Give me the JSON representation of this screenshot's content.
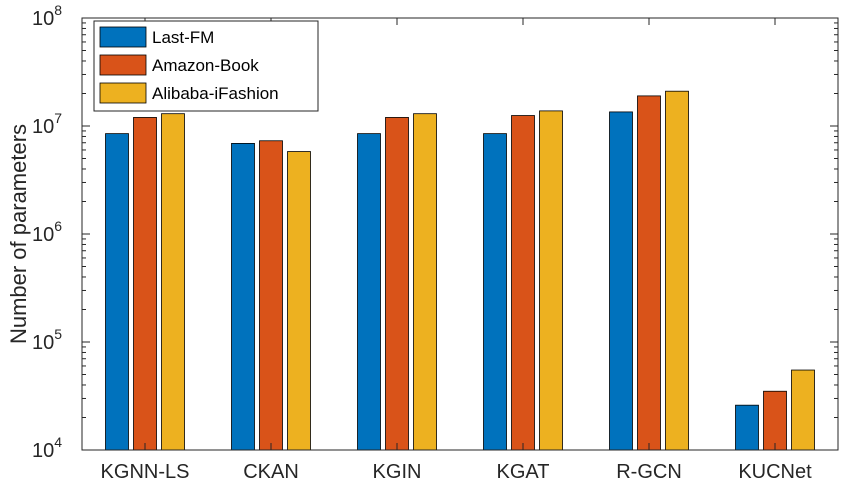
{
  "chart_data": {
    "type": "bar",
    "yscale": "log",
    "title": "",
    "xlabel": "",
    "ylabel": "Number of parameters",
    "ylim": [
      10000,
      100000000
    ],
    "yticks": [
      {
        "value": 10000,
        "base": "10",
        "exp": "4"
      },
      {
        "value": 100000,
        "base": "10",
        "exp": "5"
      },
      {
        "value": 1000000,
        "base": "10",
        "exp": "6"
      },
      {
        "value": 10000000,
        "base": "10",
        "exp": "7"
      },
      {
        "value": 100000000,
        "base": "10",
        "exp": "8"
      }
    ],
    "categories": [
      "KGNN-LS",
      "CKAN",
      "KGIN",
      "KGAT",
      "R-GCN",
      "KUCNet"
    ],
    "series": [
      {
        "name": "Last-FM",
        "color": "#0072BD",
        "values": [
          8500000,
          6900000,
          8500000,
          8500000,
          13500000,
          26000
        ]
      },
      {
        "name": "Amazon-Book",
        "color": "#D95319",
        "values": [
          12000000,
          7300000,
          12000000,
          12500000,
          19000000,
          35000
        ]
      },
      {
        "name": "Alibaba-iFashion",
        "color": "#EDB120",
        "values": [
          13000000,
          5800000,
          13000000,
          13800000,
          21000000,
          55000
        ]
      }
    ],
    "legend_position": "top-left",
    "grid": false
  }
}
